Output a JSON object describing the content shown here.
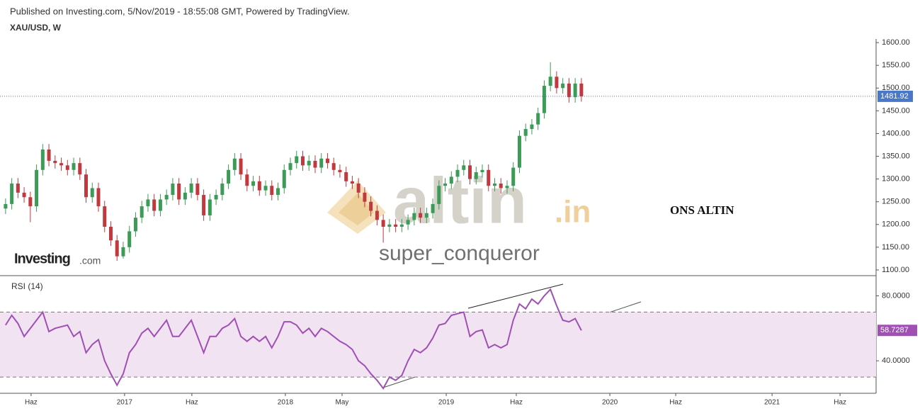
{
  "header": {
    "published": "Published on Investing.com, 5/Nov/2019 - 18:55:08 GMT, Powered by TradingView.",
    "logo": "Investing",
    "logo_suffix": ".com",
    "watermark": "altin",
    "watermark_suffix": ".in",
    "author": "super_conqueror",
    "annotation": "ONS ALTIN"
  },
  "chart_data": [
    {
      "type": "candlestick",
      "title": "XAU/USD, W",
      "up_color": "#3c9b56",
      "down_color": "#c0393e",
      "last_color": "#4a78c8",
      "xlim": [
        -0.9,
        140.6
      ],
      "ylim": [
        1089,
        1608
      ],
      "yticks": [
        {
          "value": 1100,
          "label": "1100.00"
        },
        {
          "value": 1150,
          "label": "1150.00"
        },
        {
          "value": 1200,
          "label": "1200.00"
        },
        {
          "value": 1250,
          "label": "1250.00"
        },
        {
          "value": 1300,
          "label": "1300.00"
        },
        {
          "value": 1350,
          "label": "1350.00"
        },
        {
          "value": 1400,
          "label": "1400.00"
        },
        {
          "value": 1450,
          "label": "1450.00"
        },
        {
          "value": 1500,
          "label": "1500.00"
        },
        {
          "value": 1550,
          "label": "1550.00"
        },
        {
          "value": 1600,
          "label": "1600.00"
        }
      ],
      "open": [
        1235,
        1245,
        1290,
        1270,
        1260,
        1240,
        1320,
        1365,
        1340,
        1335,
        1330,
        1320,
        1335,
        1310,
        1260,
        1280,
        1240,
        1195,
        1165,
        1130,
        1150,
        1185,
        1215,
        1240,
        1255,
        1230,
        1255,
        1265,
        1290,
        1255,
        1270,
        1290,
        1265,
        1220,
        1255,
        1265,
        1290,
        1320,
        1345,
        1310,
        1285,
        1295,
        1275,
        1285,
        1265,
        1280,
        1320,
        1335,
        1350,
        1330,
        1340,
        1325,
        1345,
        1335,
        1320,
        1315,
        1295,
        1290,
        1270,
        1250,
        1230,
        1210,
        1195,
        1200,
        1195,
        1200,
        1210,
        1225,
        1215,
        1225,
        1245,
        1285,
        1290,
        1305,
        1320,
        1330,
        1300,
        1315,
        1320,
        1285,
        1290,
        1280,
        1285,
        1325,
        1395,
        1410,
        1420,
        1445,
        1505,
        1525,
        1500,
        1510,
        1480,
        1510
      ],
      "high": [
        1257,
        1302,
        1302,
        1282,
        1272,
        1332,
        1377,
        1377,
        1352,
        1347,
        1342,
        1347,
        1347,
        1322,
        1292,
        1292,
        1252,
        1207,
        1177,
        1162,
        1197,
        1227,
        1252,
        1267,
        1267,
        1267,
        1277,
        1302,
        1302,
        1282,
        1302,
        1302,
        1277,
        1267,
        1277,
        1302,
        1332,
        1357,
        1357,
        1322,
        1307,
        1307,
        1297,
        1297,
        1292,
        1332,
        1347,
        1362,
        1362,
        1352,
        1352,
        1357,
        1357,
        1347,
        1332,
        1327,
        1307,
        1302,
        1282,
        1262,
        1242,
        1222,
        1212,
        1212,
        1212,
        1222,
        1237,
        1237,
        1237,
        1257,
        1297,
        1302,
        1317,
        1332,
        1342,
        1342,
        1327,
        1332,
        1332,
        1302,
        1302,
        1297,
        1337,
        1407,
        1422,
        1432,
        1457,
        1517,
        1557,
        1537,
        1522,
        1522,
        1522,
        1522
      ],
      "low": [
        1223,
        1233,
        1258,
        1248,
        1205,
        1228,
        1308,
        1328,
        1323,
        1318,
        1308,
        1308,
        1298,
        1248,
        1248,
        1228,
        1183,
        1153,
        1120,
        1125,
        1138,
        1173,
        1203,
        1228,
        1218,
        1218,
        1243,
        1253,
        1243,
        1243,
        1258,
        1253,
        1208,
        1208,
        1243,
        1253,
        1278,
        1308,
        1298,
        1273,
        1273,
        1263,
        1263,
        1253,
        1253,
        1268,
        1308,
        1323,
        1318,
        1318,
        1313,
        1313,
        1323,
        1308,
        1303,
        1283,
        1278,
        1258,
        1238,
        1218,
        1198,
        1160,
        1183,
        1183,
        1183,
        1188,
        1198,
        1203,
        1203,
        1213,
        1233,
        1273,
        1278,
        1293,
        1308,
        1288,
        1288,
        1303,
        1273,
        1273,
        1268,
        1268,
        1273,
        1313,
        1383,
        1398,
        1408,
        1433,
        1493,
        1488,
        1488,
        1468,
        1468,
        1470
      ],
      "close": [
        1245,
        1290,
        1270,
        1260,
        1240,
        1320,
        1365,
        1340,
        1335,
        1330,
        1320,
        1335,
        1310,
        1260,
        1280,
        1240,
        1195,
        1165,
        1130,
        1150,
        1185,
        1215,
        1240,
        1255,
        1230,
        1255,
        1265,
        1290,
        1255,
        1270,
        1290,
        1265,
        1220,
        1255,
        1265,
        1290,
        1320,
        1345,
        1310,
        1285,
        1295,
        1275,
        1285,
        1265,
        1280,
        1320,
        1335,
        1350,
        1330,
        1340,
        1325,
        1345,
        1335,
        1320,
        1315,
        1295,
        1290,
        1270,
        1250,
        1230,
        1210,
        1195,
        1200,
        1195,
        1200,
        1210,
        1225,
        1215,
        1225,
        1245,
        1285,
        1290,
        1305,
        1320,
        1330,
        1300,
        1315,
        1320,
        1285,
        1290,
        1280,
        1285,
        1325,
        1395,
        1410,
        1420,
        1445,
        1505,
        1525,
        1500,
        1510,
        1480,
        1510,
        1481.92
      ]
    },
    {
      "type": "line",
      "title": "RSI (14)",
      "color": "#a04fb4",
      "band_color": "#f1e3f1",
      "xlim": [
        -0.9,
        140.6
      ],
      "ylim": [
        20,
        92
      ],
      "bands": [
        30,
        70
      ],
      "yticks": [
        {
          "value": 40,
          "label": "40.0000"
        },
        {
          "value": 80,
          "label": "80.0000"
        }
      ],
      "xticks": [
        {
          "value": 4.12,
          "label": "Haz"
        },
        {
          "value": 19.22,
          "label": "2017"
        },
        {
          "value": 30.09,
          "label": "Haz"
        },
        {
          "value": 45.19,
          "label": "2018"
        },
        {
          "value": 54.35,
          "label": "May"
        },
        {
          "value": 71.17,
          "label": "2019"
        },
        {
          "value": 82.49,
          "label": "Haz"
        },
        {
          "value": 97.6,
          "label": "2020"
        },
        {
          "value": 108.24,
          "label": "Haz"
        },
        {
          "value": 123.8,
          "label": "2021"
        },
        {
          "value": 134.78,
          "label": "Haz"
        }
      ],
      "values": [
        62,
        68,
        63,
        55,
        60,
        65,
        70,
        58,
        60,
        61,
        62,
        55,
        58,
        45,
        50,
        53,
        40,
        32,
        25,
        32,
        45,
        50,
        57,
        60,
        55,
        60,
        65,
        55,
        55,
        60,
        65,
        55,
        45,
        55,
        55,
        60,
        62,
        66,
        55,
        52,
        55,
        52,
        55,
        48,
        55,
        64,
        64,
        62,
        57,
        60,
        55,
        60,
        58,
        55,
        52,
        50,
        47,
        40,
        37,
        32,
        28,
        23,
        30,
        28,
        31,
        40,
        47,
        45,
        48,
        54,
        62,
        63,
        68,
        69,
        70,
        55,
        58,
        59,
        48,
        50,
        48,
        50,
        65,
        75,
        72,
        78,
        75,
        80,
        84,
        74,
        65,
        64,
        66,
        58.7287
      ]
    }
  ]
}
